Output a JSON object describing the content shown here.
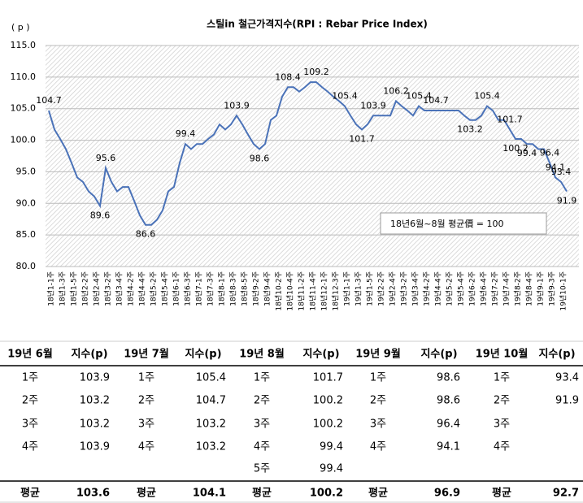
{
  "chart_data": {
    "type": "line",
    "title": "스틸in 철근가격지수(RPI : Rebar Price Index)",
    "y_label": "( p )",
    "note": "18년6월~8월 평균價 = 100",
    "color": "#4a72b8",
    "grid": true,
    "ylim": [
      80,
      115
    ],
    "yticks": [
      {
        "value": 80,
        "label": "80.0"
      },
      {
        "value": 85,
        "label": "85.0"
      },
      {
        "value": 90,
        "label": "90.0"
      },
      {
        "value": 95,
        "label": "95.0"
      },
      {
        "value": 100,
        "label": "100.0"
      },
      {
        "value": 105,
        "label": "105.0"
      },
      {
        "value": 110,
        "label": "110.0"
      },
      {
        "value": 115,
        "label": "115.0"
      }
    ],
    "categories": [
      "18년1-1주",
      null,
      "18년1-3주",
      null,
      "18년1-5주",
      null,
      "18년2-2주",
      null,
      "18년2-4주",
      null,
      "18년3-2주",
      null,
      "18년3-4주",
      null,
      "18년4-2주",
      null,
      "18년4-4주",
      null,
      "18년5-2주",
      null,
      "18년5-4주",
      null,
      "18년6-1주",
      null,
      "18년6-3주",
      null,
      "18년7-1주",
      null,
      "18년7-3주",
      null,
      "18년8-1주",
      null,
      "18년8-3주",
      null,
      "18년8-5주",
      null,
      "18년9-2주",
      null,
      "18년9-4주",
      null,
      "18년10-2주",
      null,
      "18년10-4주",
      null,
      "18년11-2주",
      null,
      "18년11-4주",
      null,
      "18년12-1주",
      null,
      "18년12-3주",
      null,
      "19년1-1주",
      null,
      "19년1-3주",
      null,
      "19년1-5주",
      null,
      "19년2-2주",
      null,
      "19년2-4주",
      null,
      "19년3-2주",
      null,
      "19년3-4주",
      null,
      "19년4-2주",
      null,
      "19년4-4주",
      null,
      "19년5-2주",
      null,
      "19년5-4주",
      null,
      "19년6-2주",
      null,
      "19년6-4주",
      null,
      "19년7-2주",
      null,
      "19년7-4주",
      null,
      "19년8-2주",
      null,
      "19년8-4주",
      null,
      "19년9-1주",
      null,
      "19년9-3주",
      null,
      "19년10-1주",
      null
    ],
    "values": [
      104.7,
      101.7,
      100.2,
      98.6,
      96.4,
      94.1,
      93.4,
      91.9,
      91.1,
      89.6,
      95.6,
      93.4,
      91.9,
      92.6,
      92.6,
      90.4,
      88.1,
      86.6,
      86.6,
      87.4,
      88.9,
      91.9,
      92.6,
      96.4,
      99.4,
      98.6,
      99.4,
      99.4,
      100.2,
      100.9,
      102.5,
      101.7,
      102.5,
      103.9,
      102.5,
      100.9,
      99.4,
      98.6,
      99.4,
      103.2,
      103.9,
      106.9,
      108.4,
      108.4,
      107.7,
      108.4,
      109.2,
      109.2,
      108.4,
      107.7,
      106.9,
      106.2,
      105.4,
      103.9,
      102.5,
      101.7,
      102.5,
      103.9,
      103.9,
      103.9,
      103.9,
      106.2,
      105.4,
      104.7,
      103.9,
      105.4,
      104.7,
      104.7,
      104.7,
      104.7,
      104.7,
      104.7,
      104.7,
      103.9,
      103.2,
      103.2,
      103.9,
      105.4,
      104.7,
      103.2,
      103.2,
      101.7,
      100.2,
      100.2,
      99.4,
      99.4,
      98.6,
      98.6,
      96.4,
      94.1,
      93.4,
      91.9
    ],
    "value_labels": [
      "104.7",
      null,
      null,
      null,
      null,
      null,
      null,
      null,
      null,
      "89.6",
      "95.6",
      null,
      null,
      null,
      null,
      null,
      null,
      "86.6",
      null,
      null,
      null,
      null,
      null,
      null,
      "99.4",
      null,
      null,
      null,
      null,
      null,
      null,
      null,
      null,
      "103.9",
      null,
      null,
      null,
      "98.6",
      null,
      null,
      null,
      null,
      "108.4",
      null,
      null,
      null,
      null,
      "109.2",
      null,
      null,
      null,
      null,
      "105.4",
      null,
      null,
      "101.7",
      null,
      "103.9",
      null,
      null,
      null,
      "106.2",
      null,
      null,
      null,
      "105.4",
      null,
      null,
      "104.7",
      null,
      null,
      null,
      null,
      null,
      "103.2",
      null,
      null,
      "105.4",
      null,
      null,
      null,
      "101.7",
      "100.2",
      null,
      "99.4",
      null,
      null,
      null,
      "96.4",
      "94.1",
      "93.4",
      "91.9"
    ]
  },
  "table": {
    "header": [
      "19년 6월",
      "지수(p)",
      "19년 7월",
      "지수(p)",
      "19년 8월",
      "지수(p)",
      "19년 9월",
      "지수(p)",
      "19년 10월",
      "지수(p)"
    ],
    "rows": [
      [
        "1주",
        "103.9",
        "1주",
        "105.4",
        "1주",
        "101.7",
        "1주",
        "98.6",
        "1주",
        "93.4"
      ],
      [
        "2주",
        "103.2",
        "2주",
        "104.7",
        "2주",
        "100.2",
        "2주",
        "98.6",
        "2주",
        "91.9"
      ],
      [
        "3주",
        "103.2",
        "3주",
        "103.2",
        "3주",
        "100.2",
        "3주",
        "96.4",
        "3주",
        null
      ],
      [
        "4주",
        "103.9",
        "4주",
        "103.2",
        "4주",
        "99.4",
        "4주",
        "94.1",
        "4주",
        null
      ],
      [
        null,
        null,
        null,
        null,
        "5주",
        "99.4",
        null,
        null,
        null,
        null
      ]
    ],
    "footer": [
      "평균",
      "103.6",
      "평균",
      "104.1",
      "평균",
      "100.2",
      "평균",
      "96.9",
      "평균",
      "92.7"
    ]
  }
}
